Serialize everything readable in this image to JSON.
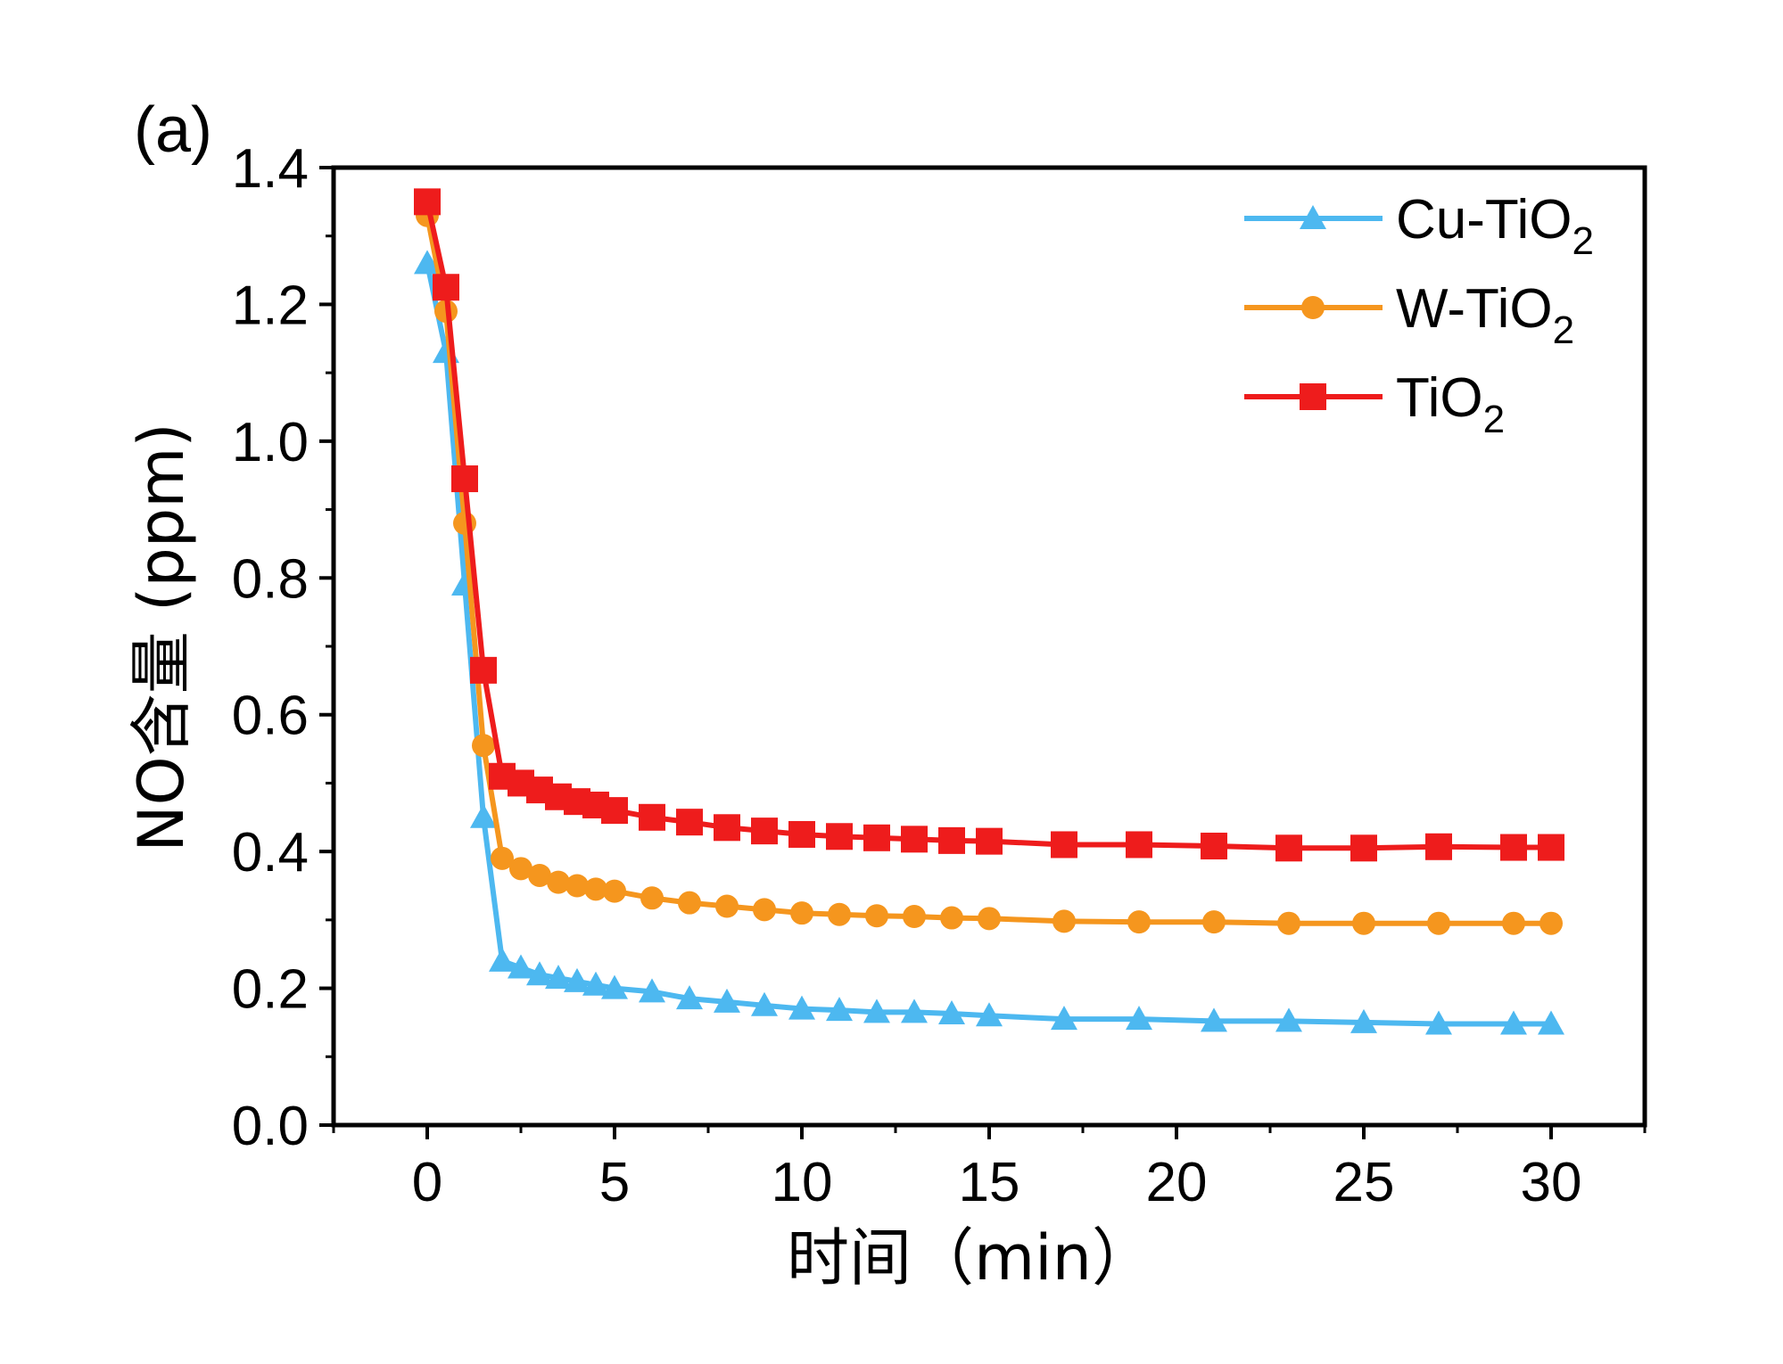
{
  "chart_data": {
    "type": "line",
    "panel_label": "(a)",
    "xlabel": "时间（min）",
    "ylabel": "NO含量 (ppm)",
    "xlim": [
      -2.5,
      32.5
    ],
    "ylim": [
      0.0,
      1.4
    ],
    "xticks": [
      0,
      5,
      10,
      15,
      20,
      25,
      30
    ],
    "xtick_labels": [
      "0",
      "5",
      "10",
      "15",
      "20",
      "25",
      "30"
    ],
    "yticks": [
      0.0,
      0.2,
      0.4,
      0.6,
      0.8,
      1.0,
      1.2,
      1.4
    ],
    "ytick_labels": [
      "0.0",
      "0.2",
      "0.4",
      "0.6",
      "0.8",
      "1.0",
      "1.2",
      "1.4"
    ],
    "grid": false,
    "legend_position": "top-right",
    "series": [
      {
        "name": "Cu-TiO2",
        "label_main": "Cu-TiO",
        "label_sub": "2",
        "color": "#4db8f0",
        "marker": "triangle",
        "x": [
          0,
          0.5,
          1,
          1.5,
          2,
          2.5,
          3,
          3.5,
          4,
          4.5,
          5,
          6,
          7,
          8,
          9,
          10,
          11,
          12,
          13,
          14,
          15,
          17,
          19,
          21,
          23,
          25,
          27,
          29,
          30
        ],
        "y": [
          1.26,
          1.13,
          0.79,
          0.45,
          0.24,
          0.23,
          0.22,
          0.215,
          0.21,
          0.205,
          0.2,
          0.195,
          0.185,
          0.18,
          0.175,
          0.17,
          0.168,
          0.165,
          0.165,
          0.163,
          0.16,
          0.155,
          0.155,
          0.152,
          0.152,
          0.15,
          0.148,
          0.148,
          0.148
        ]
      },
      {
        "name": "W-TiO2",
        "label_main": "W-TiO",
        "label_sub": "2",
        "color": "#f5961e",
        "marker": "circle",
        "x": [
          0,
          0.5,
          1,
          1.5,
          2,
          2.5,
          3,
          3.5,
          4,
          4.5,
          5,
          6,
          7,
          8,
          9,
          10,
          11,
          12,
          13,
          14,
          15,
          17,
          19,
          21,
          23,
          25,
          27,
          29,
          30
        ],
        "y": [
          1.33,
          1.19,
          0.88,
          0.555,
          0.39,
          0.375,
          0.365,
          0.355,
          0.35,
          0.345,
          0.342,
          0.332,
          0.325,
          0.32,
          0.315,
          0.31,
          0.308,
          0.306,
          0.305,
          0.303,
          0.302,
          0.298,
          0.297,
          0.297,
          0.295,
          0.295,
          0.295,
          0.295,
          0.295
        ]
      },
      {
        "name": "TiO2",
        "label_main": "TiO",
        "label_sub": "2",
        "color": "#ee1c1c",
        "marker": "square",
        "x": [
          0,
          0.5,
          1,
          1.5,
          2,
          2.5,
          3,
          3.5,
          4,
          4.5,
          5,
          6,
          7,
          8,
          9,
          10,
          11,
          12,
          13,
          14,
          15,
          17,
          19,
          21,
          23,
          25,
          27,
          29,
          30
        ],
        "y": [
          1.35,
          1.225,
          0.945,
          0.665,
          0.51,
          0.5,
          0.49,
          0.48,
          0.473,
          0.468,
          0.46,
          0.45,
          0.443,
          0.435,
          0.43,
          0.425,
          0.422,
          0.42,
          0.418,
          0.416,
          0.415,
          0.41,
          0.41,
          0.408,
          0.405,
          0.405,
          0.407,
          0.406,
          0.406
        ]
      }
    ]
  }
}
